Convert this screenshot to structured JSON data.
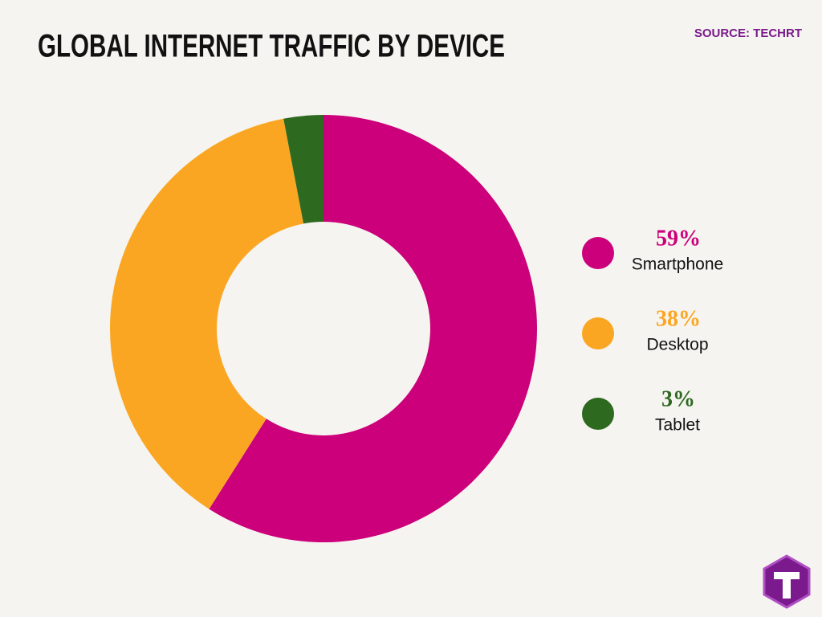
{
  "chart_data": {
    "type": "pie",
    "title": "GLOBAL INTERNET TRAFFIC BY DEVICE",
    "source": "SOURCE: TECHRT",
    "categories": [
      "Smartphone",
      "Desktop",
      "Tablet"
    ],
    "values": [
      59,
      38,
      3
    ],
    "value_labels": [
      "59%",
      "38%",
      "3%"
    ],
    "colors": [
      "#cc007a",
      "#fba622",
      "#2d6a1f"
    ],
    "donut": true,
    "legend": "right"
  }
}
